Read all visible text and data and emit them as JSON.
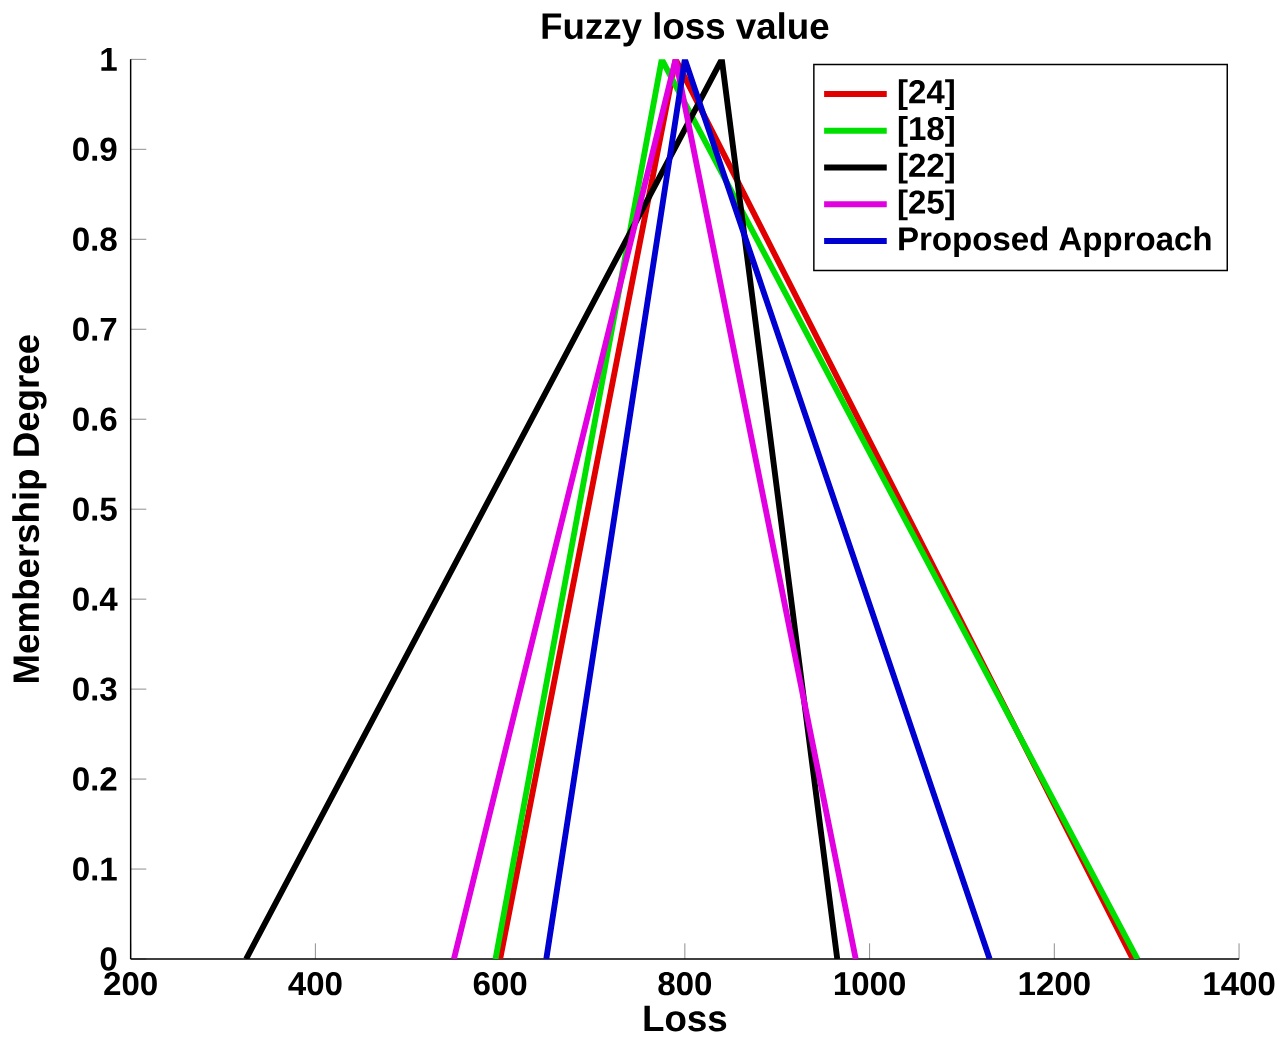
{
  "chart_data": {
    "type": "line",
    "title": "Fuzzy loss value",
    "xlabel": "Loss",
    "ylabel": "Membership Degree",
    "xlim": [
      200,
      1400
    ],
    "xticks": [
      200,
      400,
      600,
      800,
      1000,
      1200,
      1400
    ],
    "ylim": [
      0,
      1
    ],
    "yticks": [
      0,
      0.1,
      0.2,
      0.3,
      0.4,
      0.5,
      0.6,
      0.7,
      0.8,
      0.9,
      1
    ],
    "legend": "top right",
    "grid": false,
    "marker": "none",
    "line_style": "solid",
    "series": [
      {
        "name": "[24]",
        "color": "#e00000",
        "x": [
          600,
          790,
          1285
        ],
        "values": [
          0,
          1,
          0
        ]
      },
      {
        "name": "[18]",
        "color": "#00e000",
        "x": [
          595,
          775,
          1290
        ],
        "values": [
          0,
          1,
          0
        ]
      },
      {
        "name": "[22]",
        "color": "#000000",
        "x": [
          325,
          840,
          965
        ],
        "values": [
          0,
          1,
          0
        ]
      },
      {
        "name": "[25]",
        "color": "#e000e0",
        "x": [
          550,
          790,
          985
        ],
        "values": [
          0,
          1,
          0
        ]
      },
      {
        "name": "Proposed Approach",
        "color": "#0000d0",
        "x": [
          650,
          800,
          1130
        ],
        "values": [
          0,
          1,
          0
        ]
      }
    ]
  }
}
